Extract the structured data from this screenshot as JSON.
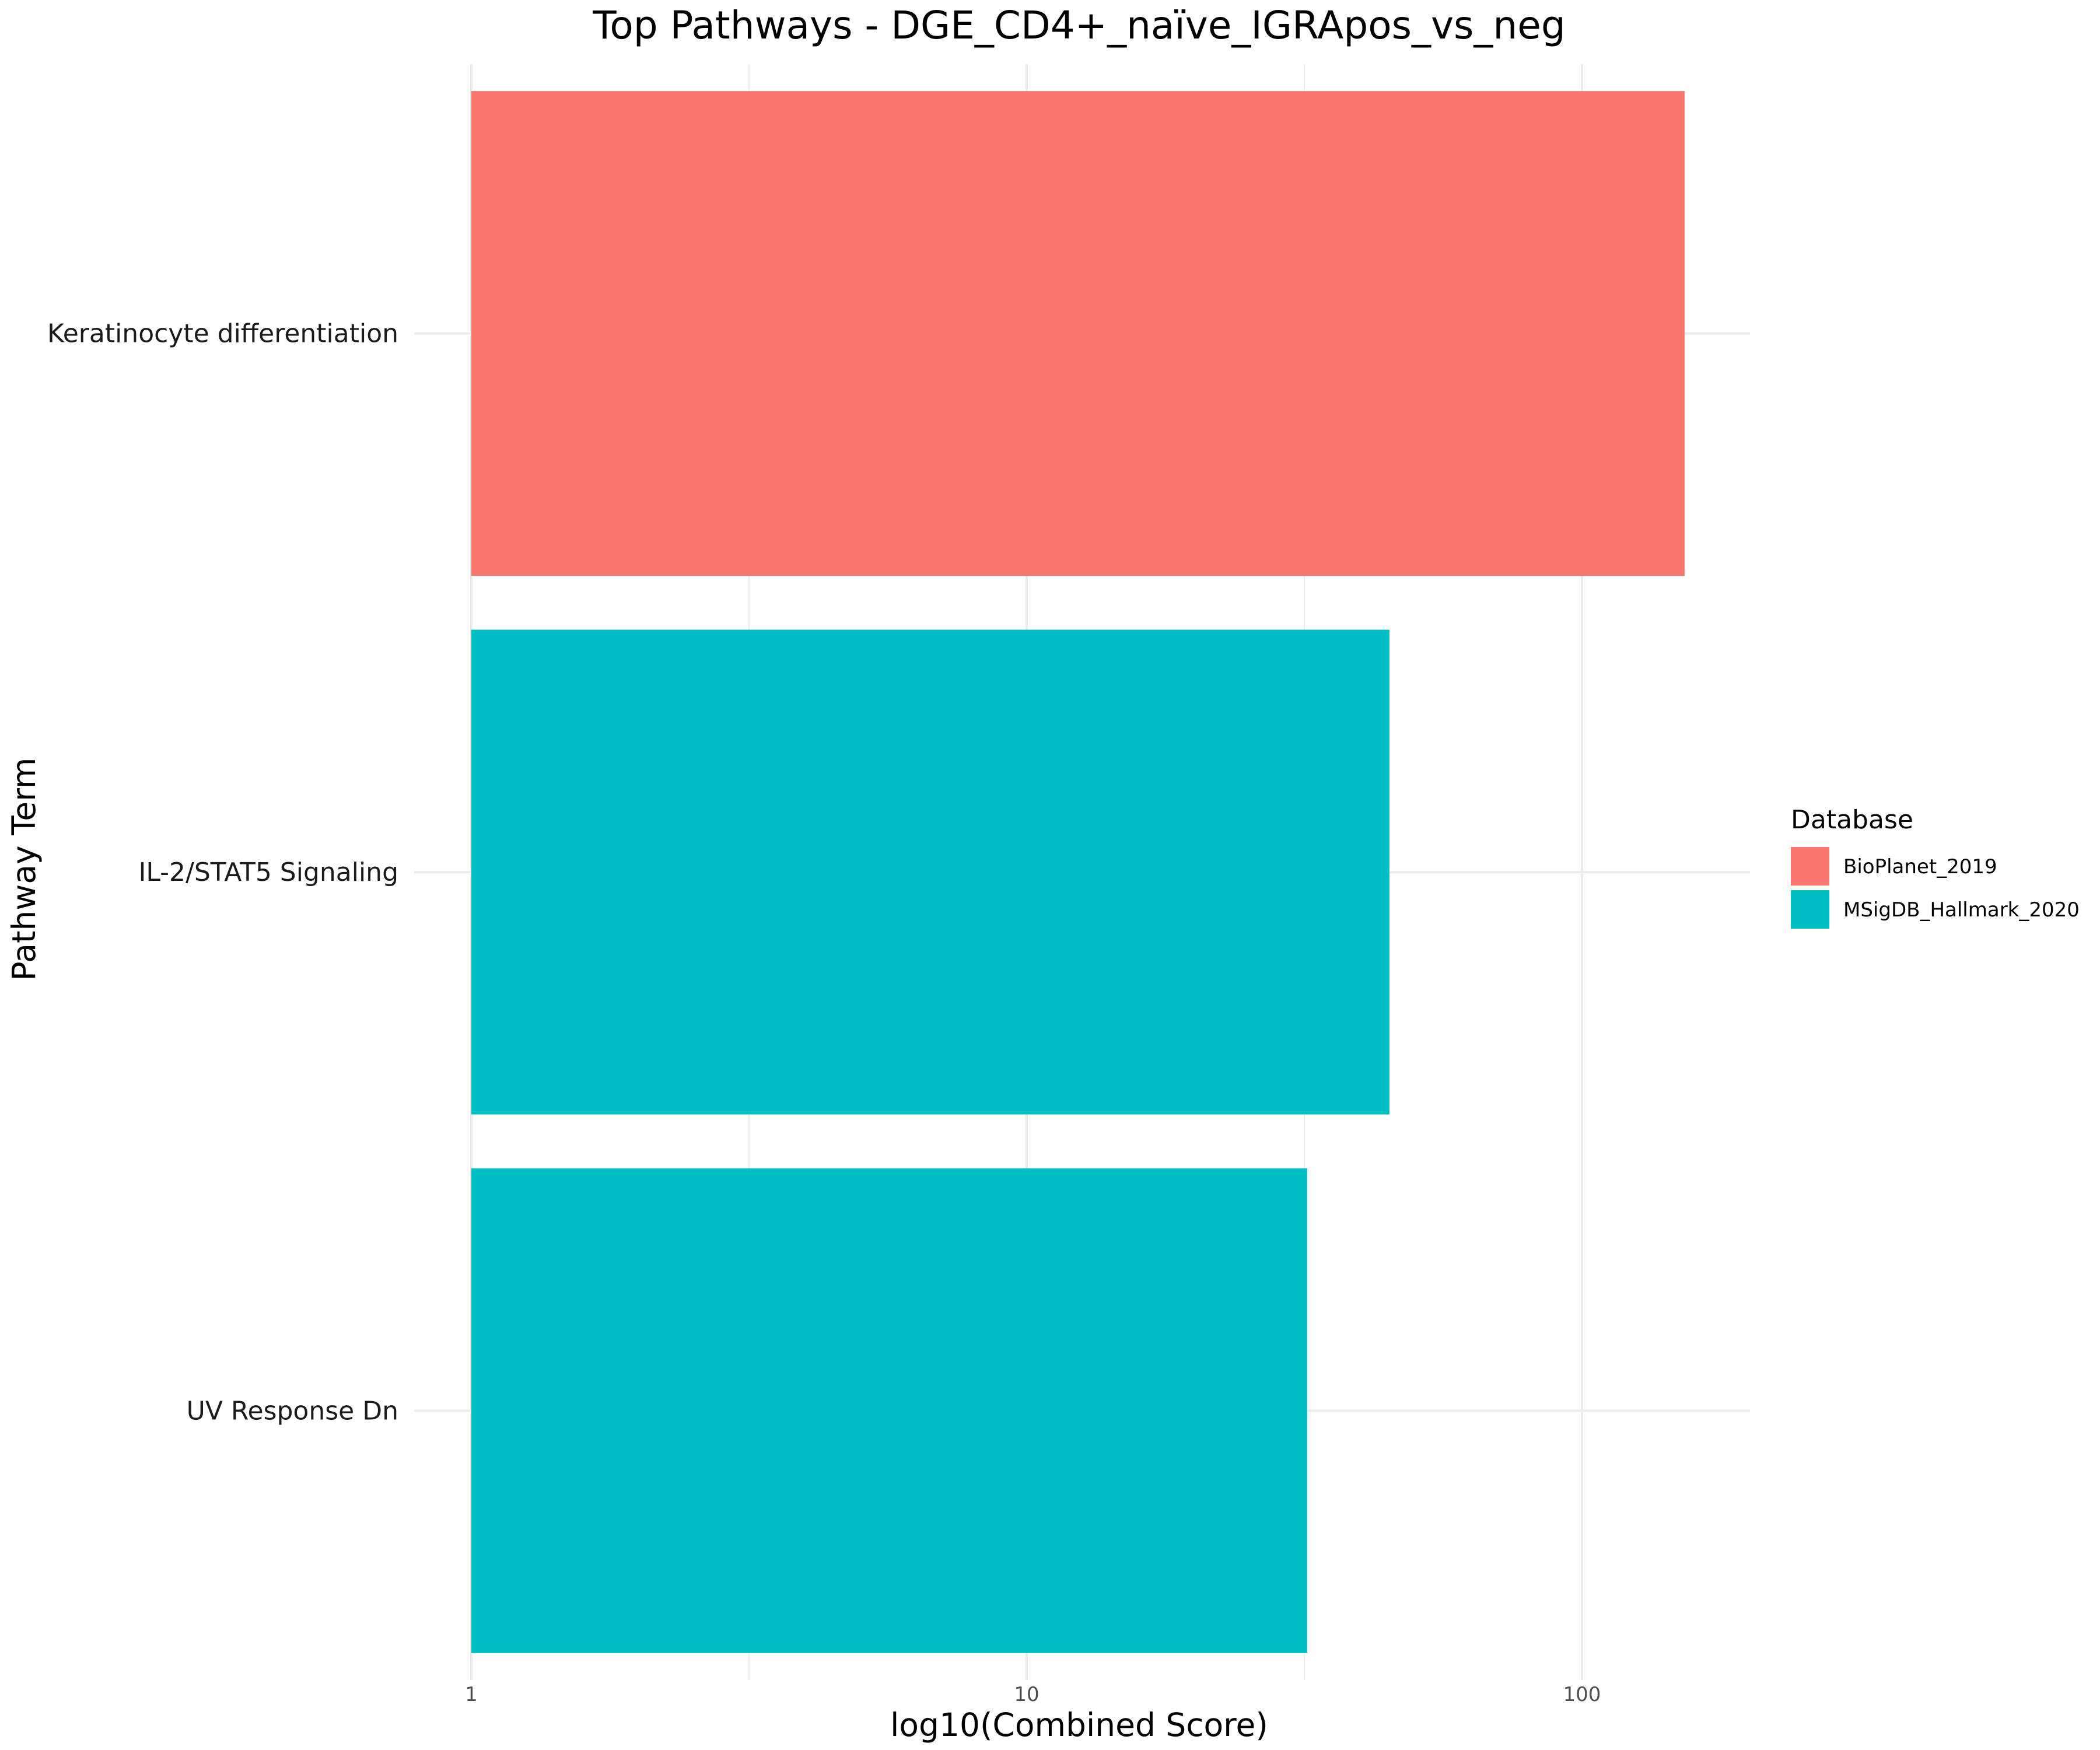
{
  "chart_data": {
    "type": "bar",
    "orientation": "horizontal",
    "title": "Top Pathways - DGE_CD4+_naïve_IGRApos_vs_neg",
    "xlabel": "log10(Combined Score)",
    "ylabel": "Pathway Term",
    "x_scale": "log10",
    "xlim": [
      1,
      200
    ],
    "x_ticks": [
      1,
      10,
      100
    ],
    "x_tick_labels": [
      "1",
      "10",
      "100"
    ],
    "grid": true,
    "legend": {
      "title": "Database",
      "placement": "right",
      "entries": [
        {
          "label": "BioPlanet_2019",
          "color": "#F8766D"
        },
        {
          "label": "MSigDB_Hallmark_2020",
          "color": "#00BFC4"
        }
      ]
    },
    "categories": [
      "Keratinocyte differentiation",
      "IL-2/STAT5 Signaling",
      "UV Response Dn"
    ],
    "values": [
      153,
      45,
      32
    ],
    "databases": [
      "BioPlanet_2019",
      "MSigDB_Hallmark_2020",
      "MSigDB_Hallmark_2020"
    ],
    "colors": [
      "#F8766D",
      "#00BFC4",
      "#00BFC4"
    ]
  }
}
